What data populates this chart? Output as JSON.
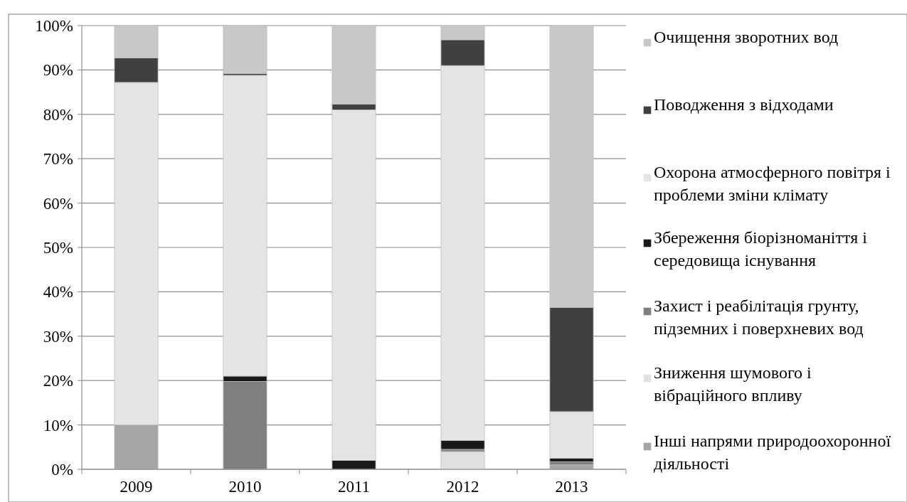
{
  "chart_data": {
    "type": "bar",
    "stacked": true,
    "categories": [
      "2009",
      "2010",
      "2011",
      "2012",
      "2013"
    ],
    "series": [
      {
        "name": "Інші напрями природоохоронної діяльності",
        "color": "#a6a6a6",
        "values": [
          10,
          0,
          0,
          0,
          1
        ]
      },
      {
        "name": "Зниження шумового і вібраційного впливу",
        "color": "#e0e0e0",
        "values": [
          0,
          0,
          0,
          4,
          0
        ]
      },
      {
        "name": "Захист і реабілітація грунту, підземних і поверхневих вод",
        "color": "#7f7f7f",
        "values": [
          0,
          19.8,
          0,
          0.5,
          0.7
        ]
      },
      {
        "name": "Збереження біорізноманіття і середовища існування",
        "color": "#1a1a1a",
        "values": [
          0,
          1.2,
          2,
          2,
          0.8
        ]
      },
      {
        "name": "Охорона атмосферного повітря і проблеми зміни клімату",
        "color": "#e4e4e4",
        "values": [
          77.2,
          67.8,
          79,
          84.5,
          10.5
        ]
      },
      {
        "name": "Поводження з відходами",
        "color": "#404040",
        "values": [
          5.5,
          0.4,
          1.3,
          5.8,
          23.5
        ]
      },
      {
        "name": "Очищення зворотних вод",
        "color": "#c8c8c8",
        "values": [
          7.3,
          10.8,
          17.7,
          3.2,
          63.5
        ]
      }
    ],
    "ylim": [
      0,
      100
    ],
    "yticks": [
      {
        "value": 0,
        "label": "0%"
      },
      {
        "value": 10,
        "label": "10%"
      },
      {
        "value": 20,
        "label": "20%"
      },
      {
        "value": 30,
        "label": "30%"
      },
      {
        "value": 40,
        "label": "40%"
      },
      {
        "value": 50,
        "label": "50%"
      },
      {
        "value": 60,
        "label": "60%"
      },
      {
        "value": 70,
        "label": "70%"
      },
      {
        "value": 80,
        "label": "80%"
      },
      {
        "value": 90,
        "label": "90%"
      },
      {
        "value": 100,
        "label": "100%"
      }
    ],
    "grid": "y",
    "legend": "right"
  }
}
